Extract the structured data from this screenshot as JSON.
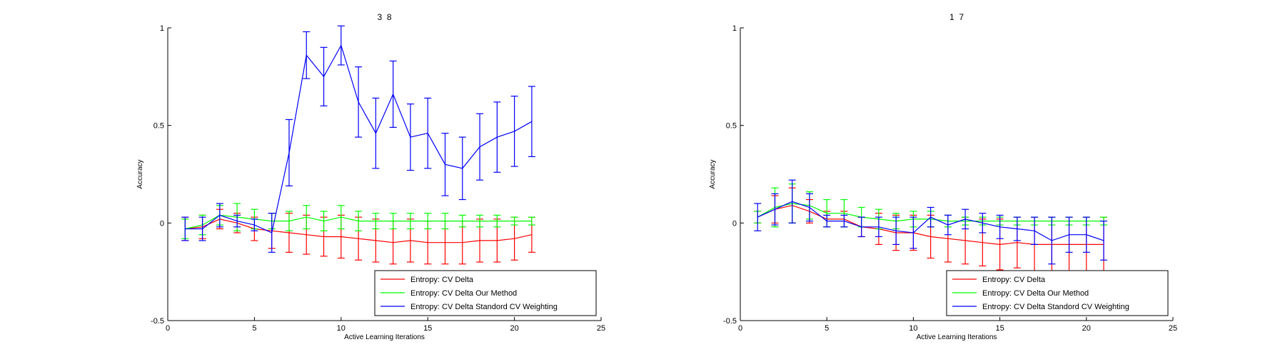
{
  "chart_data": [
    {
      "type": "line",
      "title": "3  8",
      "xlabel": "Active Learning Iterations",
      "ylabel": "Accuracy",
      "xlim": [
        0,
        25
      ],
      "ylim": [
        -0.5,
        1
      ],
      "xticks": [
        0,
        5,
        10,
        15,
        20,
        25
      ],
      "yticks": [
        -0.5,
        0,
        0.5,
        1
      ],
      "xtick_labels": [
        "0",
        "5",
        "10",
        "15",
        "20",
        "25"
      ],
      "ytick_labels": [
        "-0.5",
        "0",
        "0.5",
        "1"
      ],
      "grid": false,
      "legend_position": "bottom-right",
      "x": [
        1,
        2,
        3,
        4,
        5,
        6,
        7,
        8,
        9,
        10,
        11,
        12,
        13,
        14,
        15,
        16,
        17,
        18,
        19,
        20,
        21
      ],
      "series": [
        {
          "name": "Entropy: CV Delta",
          "color": "#ff0000",
          "values": [
            -0.03,
            -0.02,
            0.02,
            0.0,
            -0.03,
            -0.04,
            -0.05,
            -0.06,
            -0.07,
            -0.07,
            -0.08,
            -0.09,
            -0.1,
            -0.09,
            -0.1,
            -0.1,
            -0.1,
            -0.09,
            -0.09,
            -0.08,
            -0.06
          ],
          "errors": [
            0.06,
            0.06,
            0.05,
            0.05,
            0.06,
            0.09,
            0.1,
            0.1,
            0.1,
            0.11,
            0.11,
            0.11,
            0.11,
            0.11,
            0.11,
            0.11,
            0.11,
            0.11,
            0.11,
            0.11,
            0.09
          ]
        },
        {
          "name": "Entropy: CV Delta Our Method",
          "color": "#00ff00",
          "values": [
            -0.03,
            -0.01,
            0.04,
            0.03,
            0.02,
            0.01,
            0.01,
            0.03,
            0.01,
            0.03,
            0.01,
            0.01,
            0.01,
            0.01,
            0.01,
            0.01,
            0.01,
            0.01,
            0.01,
            0.01,
            0.01
          ],
          "errors": [
            0.05,
            0.05,
            0.05,
            0.07,
            0.05,
            0.04,
            0.05,
            0.06,
            0.05,
            0.06,
            0.05,
            0.04,
            0.04,
            0.04,
            0.04,
            0.04,
            0.03,
            0.03,
            0.03,
            0.02,
            0.02
          ]
        },
        {
          "name": "Entropy: CV Delta Standord CV Weighting",
          "color": "#0000ff",
          "values": [
            -0.03,
            -0.03,
            0.04,
            0.01,
            -0.01,
            -0.05,
            0.36,
            0.86,
            0.75,
            0.91,
            0.62,
            0.46,
            0.66,
            0.44,
            0.46,
            0.3,
            0.28,
            0.39,
            0.44,
            0.47,
            0.52
          ],
          "errors": [
            0.06,
            0.06,
            0.06,
            0.03,
            0.03,
            0.1,
            0.17,
            0.12,
            0.15,
            0.1,
            0.18,
            0.18,
            0.17,
            0.17,
            0.18,
            0.16,
            0.16,
            0.17,
            0.18,
            0.18,
            0.18
          ]
        }
      ]
    },
    {
      "type": "line",
      "title": "1  7",
      "xlabel": "Active Learning Iterations",
      "ylabel": "Accuracy",
      "xlim": [
        0,
        25
      ],
      "ylim": [
        -0.5,
        1
      ],
      "xticks": [
        0,
        5,
        10,
        15,
        20,
        25
      ],
      "yticks": [
        -0.5,
        0,
        0.5,
        1
      ],
      "xtick_labels": [
        "0",
        "5",
        "10",
        "15",
        "20",
        "25"
      ],
      "ytick_labels": [
        "-0.5",
        "0",
        "0.5",
        "1"
      ],
      "grid": false,
      "legend_position": "bottom-right",
      "x": [
        1,
        2,
        3,
        4,
        5,
        6,
        7,
        8,
        9,
        10,
        11,
        12,
        13,
        14,
        15,
        16,
        17,
        18,
        19,
        20,
        21
      ],
      "series": [
        {
          "name": "Entropy: CV Delta",
          "color": "#ff0000",
          "values": [
            0.03,
            0.07,
            0.09,
            0.06,
            0.02,
            0.02,
            -0.02,
            -0.03,
            -0.05,
            -0.05,
            -0.07,
            -0.08,
            -0.09,
            -0.1,
            -0.11,
            -0.1,
            -0.11,
            -0.11,
            -0.11,
            -0.11,
            -0.11
          ],
          "errors": [
            0.03,
            0.07,
            0.09,
            0.06,
            0.04,
            0.04,
            0.05,
            0.08,
            0.09,
            0.09,
            0.11,
            0.12,
            0.12,
            0.12,
            0.13,
            0.13,
            0.14,
            0.14,
            0.14,
            0.14,
            0.14
          ]
        },
        {
          "name": "Entropy: CV Delta Our Method",
          "color": "#00ff00",
          "values": [
            0.03,
            0.08,
            0.1,
            0.09,
            0.05,
            0.05,
            0.03,
            0.02,
            0.01,
            0.02,
            0.02,
            0.01,
            0.01,
            0.01,
            0.01,
            0.01,
            0.01,
            0.01,
            0.01,
            0.01,
            0.01
          ],
          "errors": [
            0.03,
            0.1,
            0.1,
            0.07,
            0.07,
            0.07,
            0.05,
            0.05,
            0.04,
            0.04,
            0.04,
            0.03,
            0.02,
            0.02,
            0.02,
            0.02,
            0.02,
            0.02,
            0.02,
            0.02,
            0.02
          ]
        },
        {
          "name": "Entropy: CV Delta Standord CV Weighting",
          "color": "#0000ff",
          "values": [
            0.03,
            0.07,
            0.11,
            0.08,
            0.01,
            0.01,
            -0.02,
            -0.02,
            -0.04,
            -0.05,
            0.03,
            -0.01,
            0.02,
            0.0,
            -0.02,
            -0.03,
            -0.04,
            -0.09,
            -0.06,
            -0.06,
            -0.09
          ],
          "errors": [
            0.07,
            0.08,
            0.11,
            0.07,
            0.03,
            0.03,
            0.05,
            0.05,
            0.07,
            0.08,
            0.05,
            0.05,
            0.05,
            0.05,
            0.06,
            0.06,
            0.07,
            0.12,
            0.09,
            0.09,
            0.1
          ]
        }
      ]
    }
  ]
}
